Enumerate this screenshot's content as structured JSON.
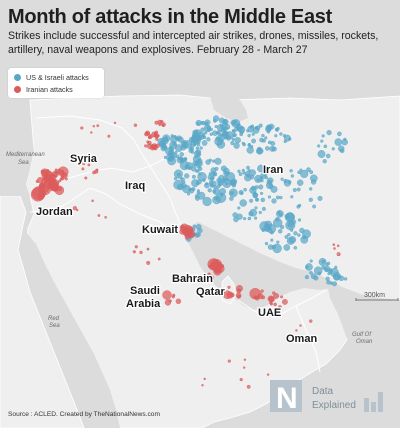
{
  "title": "Month of attacks in the Middle East",
  "subtitle": "Strikes include successful and intercepted air strikes, drones, missiles, rockets, artillery, naval weapons and explosives. February 28 - March 27",
  "legend": {
    "us_israeli": "US & Israeli attacks",
    "iranian": "Iranian attacks",
    "us_color": "#5aa7c8",
    "ir_color": "#dc5a5a"
  },
  "countries": {
    "syria": "Syria",
    "iraq": "Iraq",
    "jordan": "Jordan",
    "kuwait": "Kuwait",
    "iran": "Iran",
    "bahrain": "Bahrain",
    "qatar": "Qatar",
    "saudi_line1": "Saudi",
    "saudi_line2": "Arabia",
    "uae": "UAE",
    "oman": "Oman"
  },
  "water": {
    "med_line1": "Mediterranean",
    "med_line2": "Sea",
    "red_line1": "Red",
    "red_line2": "Sea",
    "oman_line1": "Gulf Of",
    "oman_line2": "Oman"
  },
  "scale_label": "300km",
  "source": "Source : ACLED. Created by TheNationalNews.com",
  "logo": {
    "line1": "Data",
    "line2": "Explained",
    "mark": "N"
  }
}
